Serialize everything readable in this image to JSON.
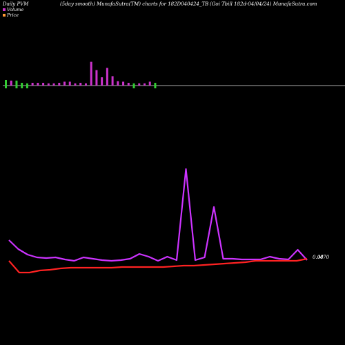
{
  "header": {
    "left": "Daily PVM",
    "center": "(5day smooth) MunafaSutra(TM) charts for 182D040424_TB",
    "right": "(Goi  Tbill 182d-04/04/24) MunafaSutra.com"
  },
  "legend": [
    {
      "label": "Volume",
      "color": "#cc33cc"
    },
    {
      "label": "Price",
      "color": "#ff9933"
    }
  ],
  "chart_data": {
    "type": "line",
    "price_label": "0.00",
    "volume_label": "M70",
    "volume": {
      "values": [
        1.0,
        0.9,
        0.9,
        0.5,
        0.4,
        0.5,
        0.5,
        0.5,
        0.4,
        0.4,
        0.5,
        0.7,
        0.7,
        0.4,
        0.5,
        0.4,
        4.3,
        2.8,
        1.5,
        3.2,
        1.7,
        0.8,
        0.7,
        0.5,
        0.4,
        0.4,
        0.4,
        0.7,
        0.5
      ],
      "direction": [
        "down",
        "up",
        "down",
        "down",
        "down",
        "up",
        "up",
        "up",
        "up",
        "up",
        "up",
        "up",
        "up",
        "up",
        "up",
        "up",
        "up",
        "up",
        "up",
        "up",
        "up",
        "up",
        "up",
        "up",
        "down",
        "up",
        "up",
        "up",
        "down"
      ]
    },
    "series": [
      {
        "name": "Volume",
        "color": "#cc33ff",
        "values": [
          25,
          12,
          4,
          0,
          -1,
          0,
          -3,
          -5,
          0,
          -2,
          -4,
          -5,
          -4,
          -2,
          5,
          1,
          -5,
          1,
          -4,
          128,
          -4,
          0,
          73,
          -2,
          -2,
          -3,
          -3,
          -3,
          1,
          -2,
          -3,
          11,
          -4
        ]
      },
      {
        "name": "Price",
        "color": "#ff2222",
        "values": [
          -5,
          -22,
          -22,
          -19,
          -18,
          -16,
          -15,
          -15,
          -15,
          -15,
          -15,
          -14,
          -14,
          -14,
          -14,
          -14,
          -13,
          -12,
          -12,
          -11,
          -10,
          -9,
          -8,
          -7,
          -5,
          -5,
          -5,
          -5,
          -5,
          -2
        ]
      }
    ]
  }
}
